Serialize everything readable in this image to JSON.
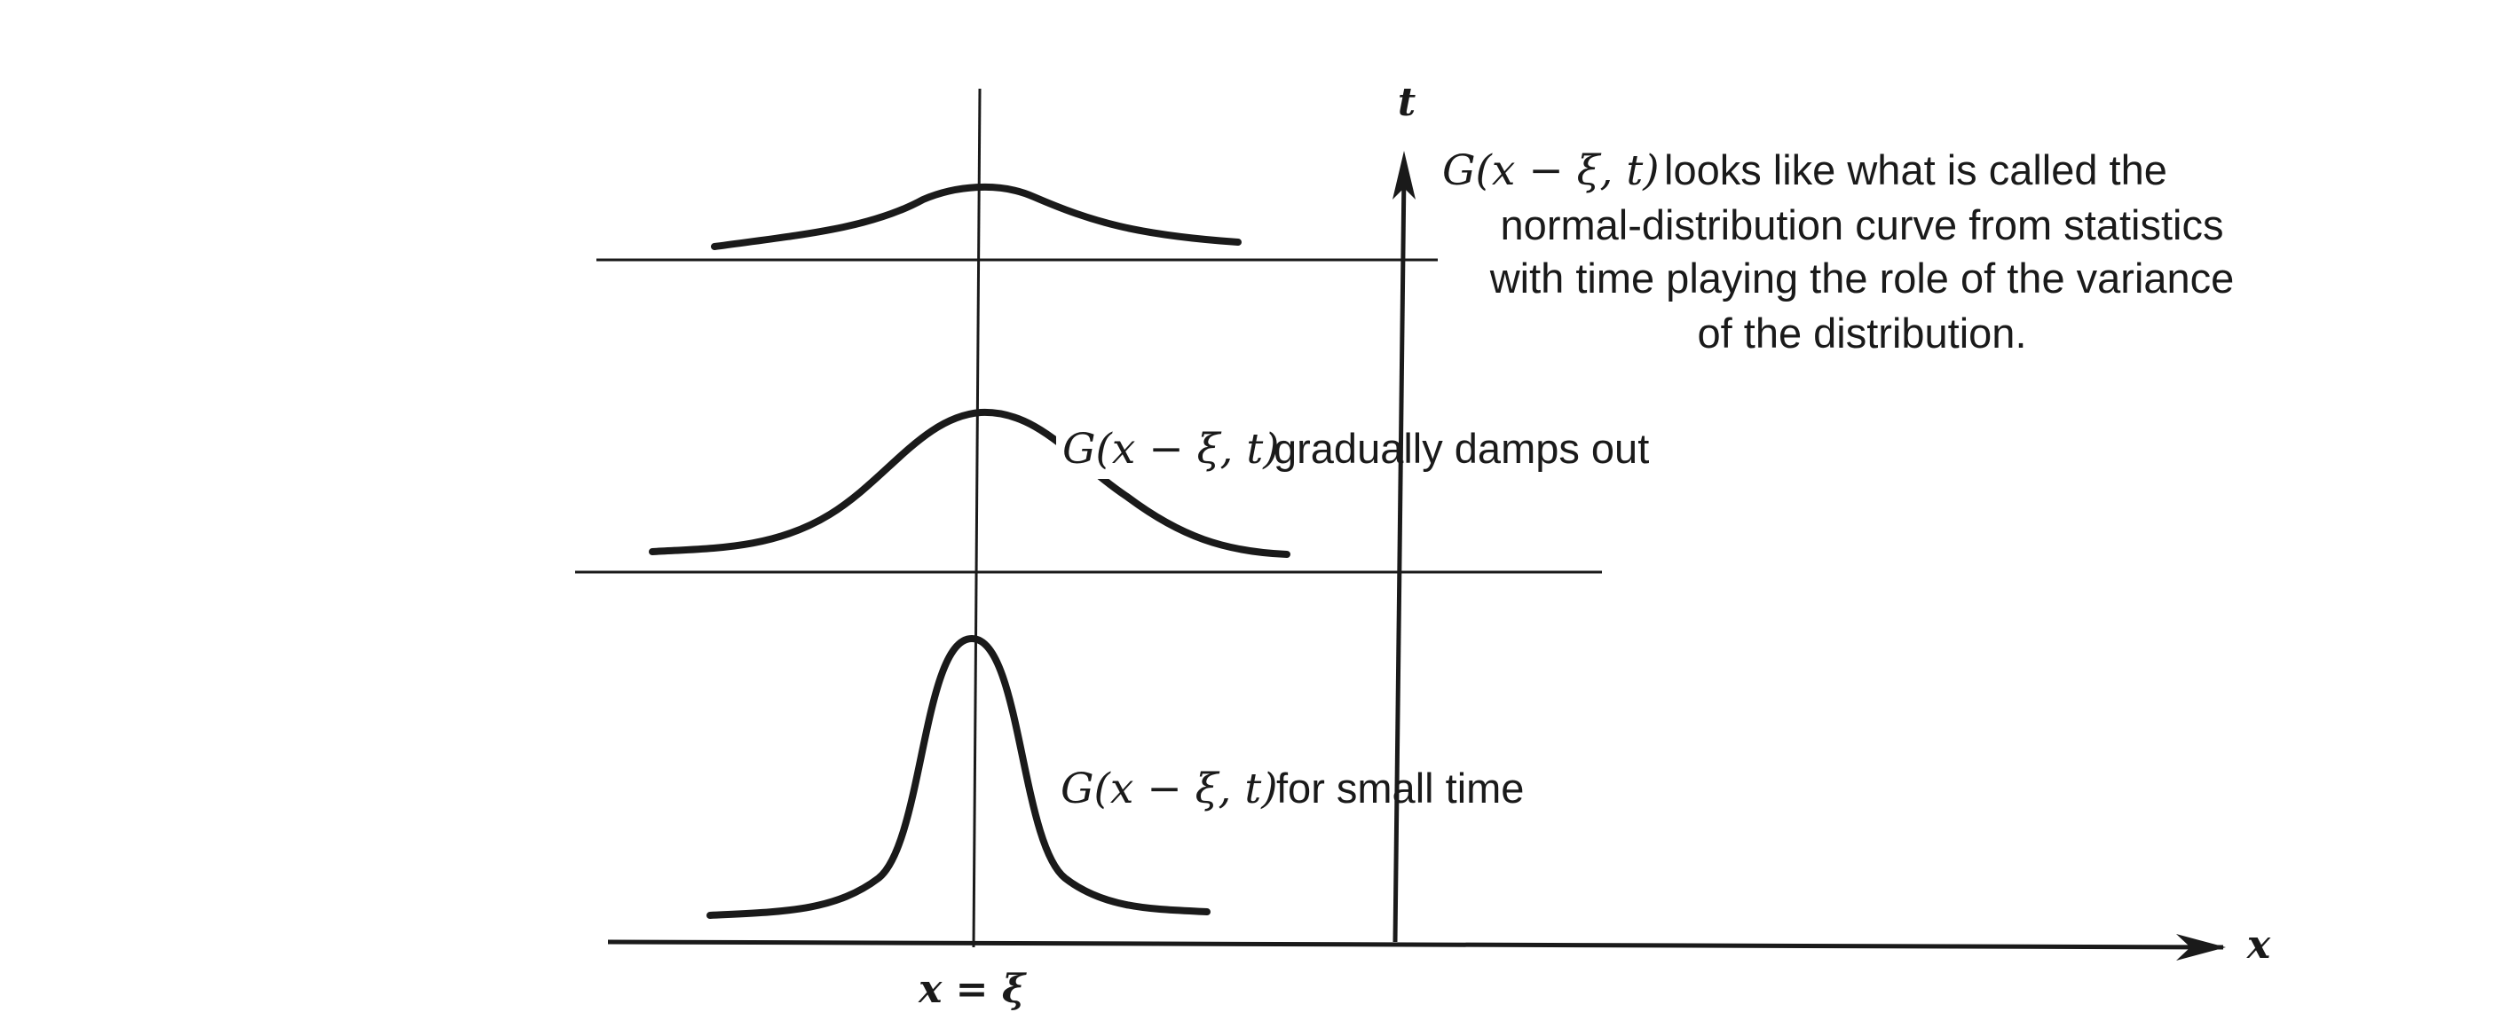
{
  "diagram": {
    "axes": {
      "x_label": "x",
      "t_label": "t",
      "x_tick_label": "x = ξ"
    },
    "annotations": {
      "large_time": {
        "math": "G(x − ξ, t)",
        "lines": [
          "looks like what is called the",
          "normal-distribution curve from statistics",
          "with time playing the role of the variance",
          "of the distribution."
        ]
      },
      "medium_time": {
        "math": "G(x − ξ, t)",
        "text": "gradually damps out"
      },
      "small_time": {
        "math": "G(x − ξ, t)",
        "text": "for small time"
      }
    }
  }
}
